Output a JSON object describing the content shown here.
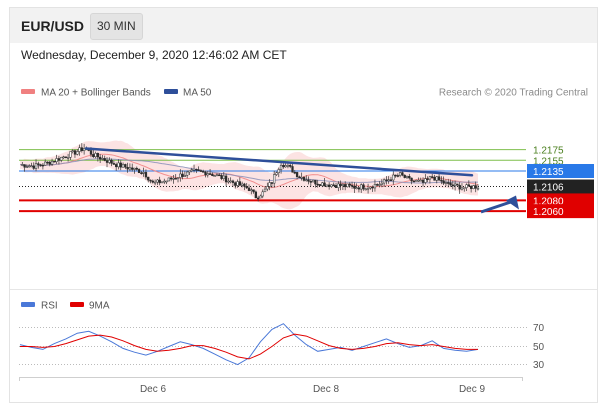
{
  "header": {
    "pair": "EUR/USD",
    "timeframe": "30 MIN"
  },
  "datetime": "Wednesday, December 9, 2020 12:46:02 AM CET",
  "legend": {
    "ma20": {
      "label": "MA 20 + Bollinger Bands",
      "color": "#f08080"
    },
    "ma50": {
      "label": "MA 50",
      "color": "#2e4f9a"
    },
    "credit": "Research © 2020 Trading Central"
  },
  "rsi_legend": {
    "rsi": {
      "label": "RSI",
      "color": "#4a78d8"
    },
    "ma": {
      "label": "9MA",
      "color": "#e00000"
    }
  },
  "chart_data": {
    "type": "candlestick",
    "ylim": [
      2.0948,
      2.1192
    ],
    "x_labels": [
      "Dec 6",
      "Dec 8",
      "Dec 9"
    ],
    "levels": [
      {
        "value": 1.2175,
        "label": "1.2175",
        "kind": "resistance",
        "color": "#7fbf4d"
      },
      {
        "value": 1.2155,
        "label": "1.2155",
        "kind": "resistance",
        "color": "#7fbf4d"
      },
      {
        "value": 1.2135,
        "label": "1.2135",
        "kind": "pivot",
        "color": "#2979e8"
      },
      {
        "value": 1.2106,
        "label": "1.2106",
        "kind": "last-price",
        "color": "#222222"
      },
      {
        "value": 1.208,
        "label": "1.2080",
        "kind": "target",
        "color": "#e00000"
      },
      {
        "value": 1.206,
        "label": "1.2060",
        "kind": "target",
        "color": "#e00000"
      }
    ],
    "trendline": {
      "from": 1.2177,
      "to": 1.2127
    },
    "arrow_target": 1.2063,
    "price_path": [
      [
        0,
        1.2147
      ],
      [
        6,
        1.2144
      ],
      [
        12,
        1.215
      ],
      [
        18,
        1.216
      ],
      [
        24,
        1.217
      ],
      [
        28,
        1.2178
      ],
      [
        32,
        1.2165
      ],
      [
        36,
        1.2158
      ],
      [
        42,
        1.2147
      ],
      [
        48,
        1.214
      ],
      [
        54,
        1.2133
      ],
      [
        58,
        1.2112
      ],
      [
        64,
        1.2117
      ],
      [
        70,
        1.2127
      ],
      [
        76,
        1.2134
      ],
      [
        82,
        1.2132
      ],
      [
        88,
        1.2123
      ],
      [
        94,
        1.2112
      ],
      [
        100,
        1.2102
      ],
      [
        103,
        1.2087
      ],
      [
        106,
        1.2094
      ],
      [
        110,
        1.2115
      ],
      [
        112,
        1.2135
      ],
      [
        114,
        1.215
      ],
      [
        118,
        1.214
      ],
      [
        122,
        1.2125
      ],
      [
        128,
        1.2115
      ],
      [
        134,
        1.211
      ],
      [
        140,
        1.2108
      ],
      [
        146,
        1.2105
      ],
      [
        152,
        1.2106
      ],
      [
        158,
        1.2112
      ],
      [
        162,
        1.2122
      ],
      [
        166,
        1.2128
      ],
      [
        170,
        1.2118
      ],
      [
        176,
        1.2113
      ],
      [
        180,
        1.2124
      ],
      [
        186,
        1.2111
      ],
      [
        190,
        1.2107
      ],
      [
        194,
        1.2104
      ],
      [
        198,
        1.2106
      ]
    ],
    "rsi": {
      "levels": [
        70,
        50,
        30
      ],
      "level_labels": [
        "70",
        "50",
        "30"
      ],
      "values": [
        52,
        49,
        47,
        53,
        58,
        64,
        66,
        61,
        55,
        48,
        44,
        41,
        45,
        50,
        55,
        52,
        48,
        42,
        36,
        31,
        38,
        55,
        68,
        74,
        62,
        52,
        45,
        47,
        49,
        46,
        50,
        54,
        58,
        53,
        49,
        51,
        56,
        48,
        46,
        45,
        47
      ],
      "ma_values": [
        50,
        50,
        49,
        50,
        53,
        57,
        61,
        62,
        60,
        56,
        51,
        47,
        45,
        46,
        48,
        51,
        51,
        48,
        44,
        39,
        37,
        42,
        50,
        59,
        63,
        61,
        56,
        51,
        48,
        47,
        48,
        50,
        53,
        54,
        52,
        51,
        52,
        50,
        48,
        47,
        47
      ]
    }
  }
}
